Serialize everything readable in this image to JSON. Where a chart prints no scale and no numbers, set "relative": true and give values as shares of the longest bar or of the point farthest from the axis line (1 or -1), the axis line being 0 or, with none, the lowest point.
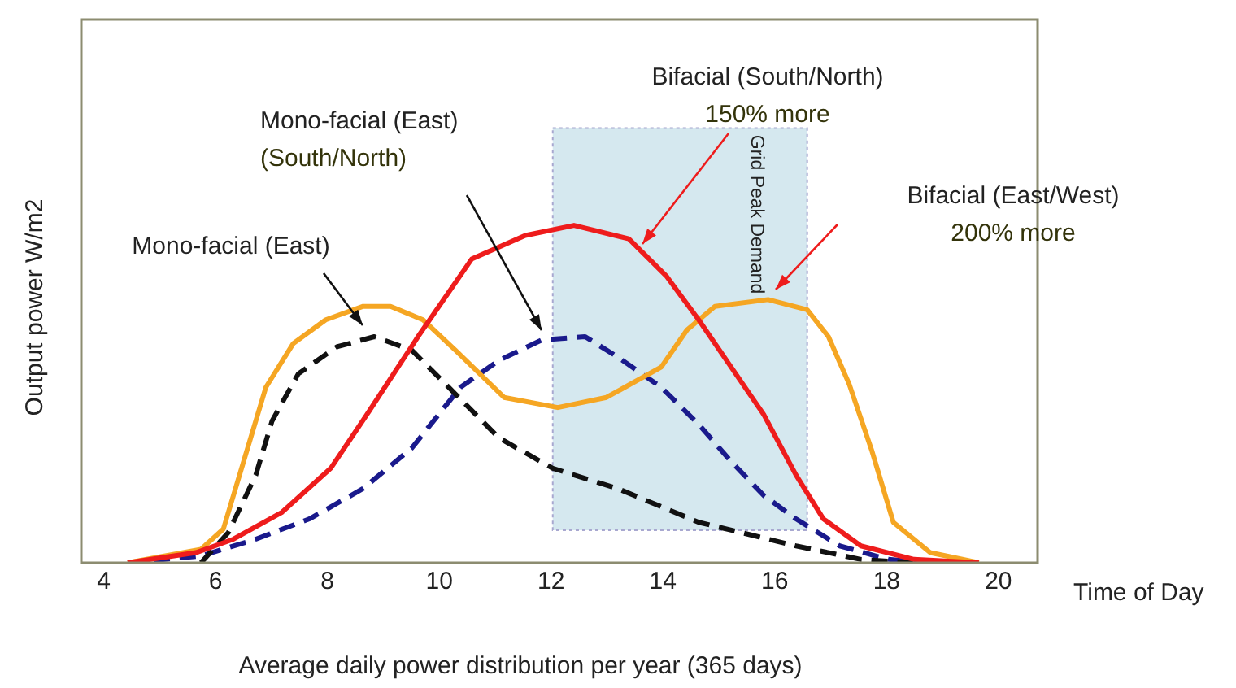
{
  "chart_data": {
    "type": "line",
    "relative": true,
    "xlabel": "Time of Day",
    "ylabel": "Output power W/m2",
    "xlim": [
      3.6,
      20.7
    ],
    "xticks": [
      4,
      6,
      8,
      10,
      12,
      14,
      16,
      18,
      20
    ],
    "grid": false,
    "legend": false,
    "marker": "none",
    "series": [
      {
        "color": "#ee1c1c",
        "line_style": "solid",
        "x": [
          4.43,
          5.65,
          6.32,
          7.19,
          8.06,
          8.75,
          9.62,
          10.58,
          11.54,
          12.41,
          13.39,
          14.06,
          14.64,
          15.22,
          15.8,
          16.38,
          16.87,
          17.54,
          18.49,
          19.65
        ],
        "values": [
          0,
          0.03,
          0.07,
          0.15,
          0.28,
          0.45,
          0.67,
          0.9,
          0.97,
          1,
          0.96,
          0.85,
          0.72,
          0.58,
          0.44,
          0.26,
          0.13,
          0.05,
          0.01,
          0
        ]
      },
      {
        "color": "#f5a623",
        "line_style": "solid",
        "x": [
          4.43,
          5.74,
          6.14,
          6.52,
          6.9,
          7.39,
          7.97,
          8.64,
          9.13,
          9.71,
          10.29,
          11.16,
          12.12,
          12.99,
          13.97,
          14.43,
          14.93,
          15.88,
          16.58,
          16.96,
          17.33,
          17.74,
          18.12,
          18.78,
          19.65
        ],
        "values": [
          0,
          0.04,
          0.1,
          0.31,
          0.52,
          0.65,
          0.72,
          0.76,
          0.76,
          0.72,
          0.63,
          0.49,
          0.46,
          0.49,
          0.58,
          0.69,
          0.76,
          0.78,
          0.75,
          0.67,
          0.53,
          0.33,
          0.12,
          0.03,
          0
        ]
      },
      {
        "color": "#111111",
        "line_style": "dashed",
        "x": [
          5.74,
          6.23,
          6.72,
          7.01,
          7.48,
          8.17,
          8.84,
          9.51,
          10.29,
          11.07,
          12.03,
          13.19,
          14.64,
          16.38,
          17.54,
          18.49
        ],
        "values": [
          0,
          0.09,
          0.26,
          0.42,
          0.56,
          0.64,
          0.67,
          0.63,
          0.5,
          0.37,
          0.28,
          0.22,
          0.12,
          0.05,
          0.01,
          0
        ]
      },
      {
        "color": "#1a1a8c",
        "line_style": "dashed",
        "x": [
          4.43,
          5.74,
          6.72,
          7.68,
          8.64,
          9.51,
          10.38,
          11.07,
          11.83,
          12.61,
          13.19,
          13.97,
          14.64,
          15.22,
          15.8,
          16.38,
          17.16,
          18.03,
          18.7
        ],
        "values": [
          0,
          0.02,
          0.07,
          0.13,
          0.22,
          0.34,
          0.52,
          0.6,
          0.66,
          0.67,
          0.61,
          0.52,
          0.41,
          0.3,
          0.2,
          0.13,
          0.05,
          0.01,
          0
        ]
      }
    ],
    "bands": [
      {
        "axis": "x",
        "from": 12.03,
        "to": 16.58,
        "label": "Grid Peak Demand",
        "color": "#d5e8ef"
      }
    ],
    "annotations": [
      "Mono-facial (East)",
      "Mono-facial (East)\n(South/North)",
      "Bifacial (South/North)\n150% more",
      "Bifacial (East/West)\n200% more",
      "Average daily power distribution per year (365 days)"
    ]
  }
}
